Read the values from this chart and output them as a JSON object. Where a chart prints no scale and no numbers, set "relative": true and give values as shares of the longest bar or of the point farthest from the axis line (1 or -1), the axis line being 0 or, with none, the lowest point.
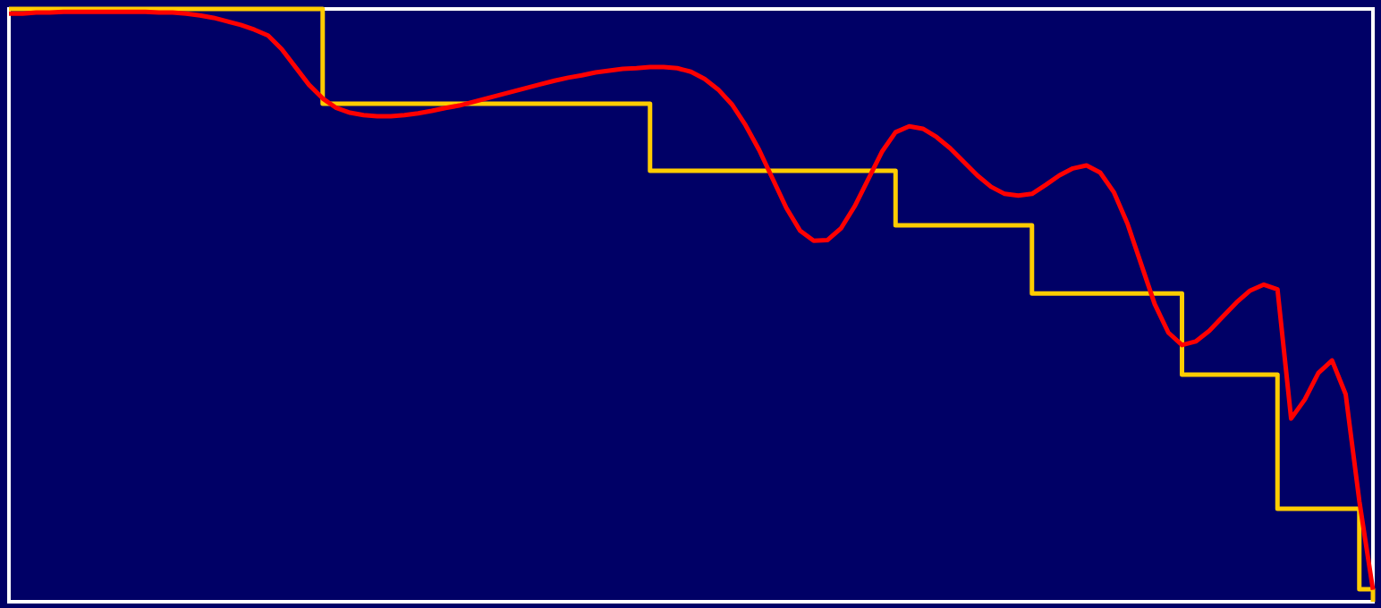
{
  "chart_data": {
    "type": "line",
    "relative": true,
    "marker": "none",
    "line_style": "solid",
    "categories": [
      null,
      null,
      null,
      null,
      null,
      null,
      null,
      null,
      null,
      null,
      null,
      null,
      null,
      null,
      null,
      null,
      null,
      null,
      null,
      null,
      null,
      null,
      null,
      null,
      null,
      null,
      null,
      null,
      null,
      null,
      null,
      null,
      null,
      null,
      null,
      null,
      null,
      null,
      null,
      null,
      null,
      null,
      null,
      null,
      null,
      null,
      null,
      null,
      null,
      null,
      null,
      null,
      null,
      null,
      null,
      null,
      null,
      null,
      null,
      null,
      null,
      null,
      null,
      null,
      null,
      null,
      null,
      null,
      null,
      null,
      null,
      null,
      null,
      null,
      null,
      null,
      null,
      null,
      null,
      null,
      null,
      null,
      null,
      null,
      null,
      null,
      null,
      null,
      null,
      null,
      null,
      null,
      null,
      null,
      null,
      null,
      null,
      null,
      null,
      null,
      null
    ],
    "series": [
      {
        "type": "step",
        "color": "#ffcc00",
        "values": [
          1,
          1,
          1,
          1,
          1,
          1,
          1,
          1,
          1,
          1,
          1,
          1,
          1,
          1,
          1,
          1,
          1,
          1,
          1,
          1,
          1,
          1,
          1,
          0.84,
          0.84,
          0.84,
          0.84,
          0.84,
          0.84,
          0.84,
          0.84,
          0.84,
          0.84,
          0.84,
          0.84,
          0.84,
          0.84,
          0.84,
          0.84,
          0.84,
          0.84,
          0.84,
          0.84,
          0.84,
          0.84,
          0.84,
          0.84,
          0.727,
          0.727,
          0.727,
          0.727,
          0.727,
          0.727,
          0.727,
          0.727,
          0.727,
          0.727,
          0.727,
          0.727,
          0.727,
          0.727,
          0.727,
          0.727,
          0.727,
          0.727,
          0.635,
          0.635,
          0.635,
          0.635,
          0.635,
          0.635,
          0.635,
          0.635,
          0.635,
          0.635,
          0.52,
          0.52,
          0.52,
          0.52,
          0.52,
          0.52,
          0.52,
          0.52,
          0.52,
          0.52,
          0.52,
          0.383,
          0.383,
          0.383,
          0.383,
          0.383,
          0.383,
          0.383,
          0.157,
          0.157,
          0.157,
          0.157,
          0.157,
          0.157,
          0.021,
          0
        ]
      },
      {
        "type": "line",
        "color": "#ff0000",
        "values": [
          0.992,
          0.992,
          0.994,
          0.994,
          0.995,
          0.995,
          0.995,
          0.995,
          0.995,
          0.995,
          0.995,
          0.994,
          0.994,
          0.992,
          0.989,
          0.985,
          0.979,
          0.973,
          0.965,
          0.955,
          0.932,
          0.902,
          0.872,
          0.849,
          0.833,
          0.825,
          0.821,
          0.819,
          0.819,
          0.821,
          0.824,
          0.828,
          0.833,
          0.837,
          0.843,
          0.849,
          0.855,
          0.861,
          0.867,
          0.873,
          0.879,
          0.884,
          0.888,
          0.893,
          0.896,
          0.899,
          0.9,
          0.902,
          0.902,
          0.9,
          0.894,
          0.882,
          0.864,
          0.839,
          0.804,
          0.762,
          0.713,
          0.664,
          0.626,
          0.609,
          0.61,
          0.63,
          0.667,
          0.713,
          0.759,
          0.792,
          0.802,
          0.798,
          0.784,
          0.765,
          0.742,
          0.719,
          0.7,
          0.688,
          0.685,
          0.688,
          0.703,
          0.719,
          0.731,
          0.736,
          0.724,
          0.691,
          0.638,
          0.57,
          0.502,
          0.454,
          0.433,
          0.439,
          0.457,
          0.481,
          0.505,
          0.525,
          0.535,
          0.527,
          0.309,
          0.341,
          0.386,
          0.407,
          0.35,
          0.17,
          0.02
        ]
      }
    ]
  }
}
